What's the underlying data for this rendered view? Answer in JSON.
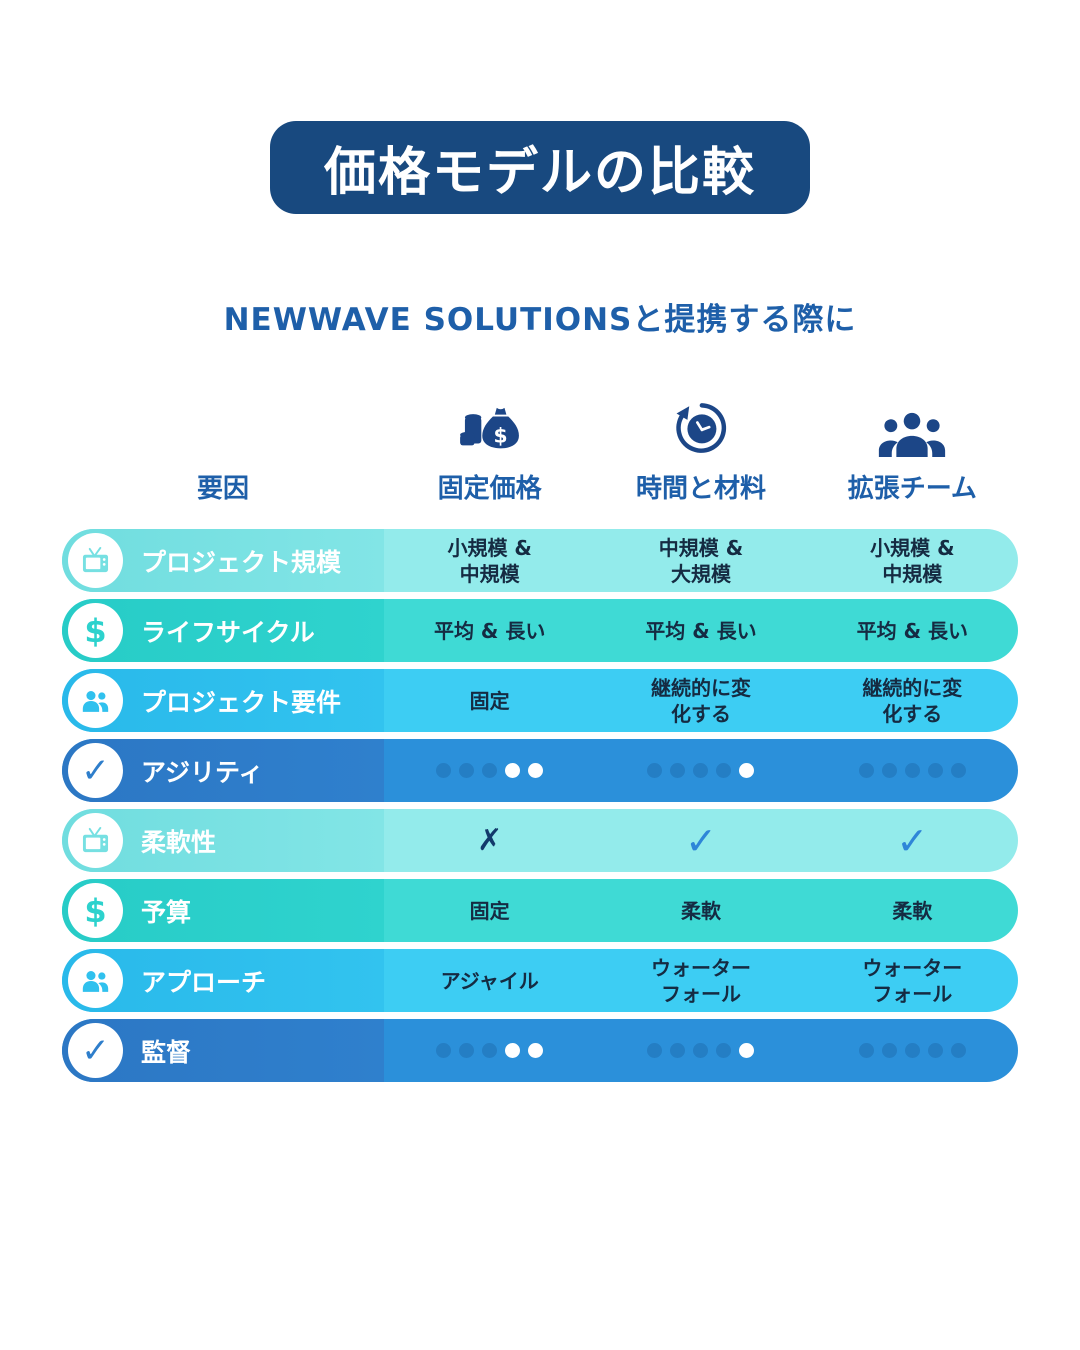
{
  "title": "価格モデルの比較",
  "subtitle": "NEWWAVE SOLUTIONSと提携する際に",
  "icon_glyphs": {
    "dollar": "$",
    "check": "✓"
  },
  "table": {
    "factor_header": "要因",
    "columns": [
      {
        "label": "固定価格",
        "icon": "money-bag-icon"
      },
      {
        "label": "時間と材料",
        "icon": "time-clock-arrow-icon"
      },
      {
        "label": "拡張チーム",
        "icon": "team-people-icon"
      }
    ],
    "rows": [
      {
        "label": "プロジェクト規模",
        "icon": "tv-icon",
        "theme": "cyan-light",
        "cells": [
          {
            "type": "text",
            "value": "小規模 &\n中規模"
          },
          {
            "type": "text",
            "value": "中規模 &\n大規模"
          },
          {
            "type": "text",
            "value": "小規模 &\n中規模"
          }
        ]
      },
      {
        "label": "ライフサイクル",
        "icon": "dollar-icon",
        "theme": "teal",
        "cells": [
          {
            "type": "text",
            "value": "平均 & 長い"
          },
          {
            "type": "text",
            "value": "平均 & 長い"
          },
          {
            "type": "text",
            "value": "平均 & 長い"
          }
        ]
      },
      {
        "label": "プロジェクト要件",
        "icon": "people-icon",
        "theme": "sky",
        "cells": [
          {
            "type": "text",
            "value": "固定"
          },
          {
            "type": "text",
            "value": "継続的に変\n化する"
          },
          {
            "type": "text",
            "value": "継続的に変\n化する"
          }
        ]
      },
      {
        "label": "アジリティ",
        "icon": "check-icon",
        "theme": "blue",
        "cells": [
          {
            "type": "dots",
            "value": [
              0,
              0,
              0,
              1,
              1
            ]
          },
          {
            "type": "dots",
            "value": [
              0,
              0,
              0,
              0,
              1
            ]
          },
          {
            "type": "dots",
            "value": [
              0,
              0,
              0,
              0,
              0
            ]
          }
        ]
      },
      {
        "label": "柔軟性",
        "icon": "tv-icon",
        "theme": "cyan-light",
        "cells": [
          {
            "type": "mark",
            "value": "✗"
          },
          {
            "type": "mark",
            "value": "✓"
          },
          {
            "type": "mark",
            "value": "✓"
          }
        ]
      },
      {
        "label": "予算",
        "icon": "dollar-icon",
        "theme": "teal",
        "cells": [
          {
            "type": "text",
            "value": "固定"
          },
          {
            "type": "text",
            "value": "柔軟"
          },
          {
            "type": "text",
            "value": "柔軟"
          }
        ]
      },
      {
        "label": "アプローチ",
        "icon": "people-icon",
        "theme": "sky",
        "cells": [
          {
            "type": "text",
            "value": "アジャイル"
          },
          {
            "type": "text",
            "value": "ウォーター\nフォール"
          },
          {
            "type": "text",
            "value": "ウォーター\nフォール"
          }
        ]
      },
      {
        "label": "監督",
        "icon": "check-icon",
        "theme": "blue",
        "cells": [
          {
            "type": "dots",
            "value": [
              0,
              0,
              0,
              1,
              1
            ]
          },
          {
            "type": "dots",
            "value": [
              0,
              0,
              0,
              0,
              1
            ]
          },
          {
            "type": "dots",
            "value": [
              0,
              0,
              0,
              0,
              0
            ]
          }
        ]
      }
    ]
  },
  "colors": {
    "banner_bg": "#18497F",
    "banner_text": "#FFFFFF",
    "subtitle_text": "#1E5FA9",
    "header_text": "#1E5FA9",
    "header_icon": "#1C4687",
    "cell_text": "#152B42",
    "check_mark": "#2E86D8",
    "cross_mark": "#123A6B",
    "row_cyan_light": {
      "label": "#7FE3E5",
      "cells": "#93EBEB"
    },
    "row_teal": {
      "label": "#2DD2CD",
      "cells": "#3FDAD5"
    },
    "row_sky": {
      "label": "#30C1EE",
      "cells": "#3DCDF3"
    },
    "row_blue": {
      "label": "#2E7ECB",
      "cells": "#2B90DA"
    },
    "dot_lit": "#FFFFFF",
    "dot_dim": "rgba(16,70,130,0.25)"
  }
}
